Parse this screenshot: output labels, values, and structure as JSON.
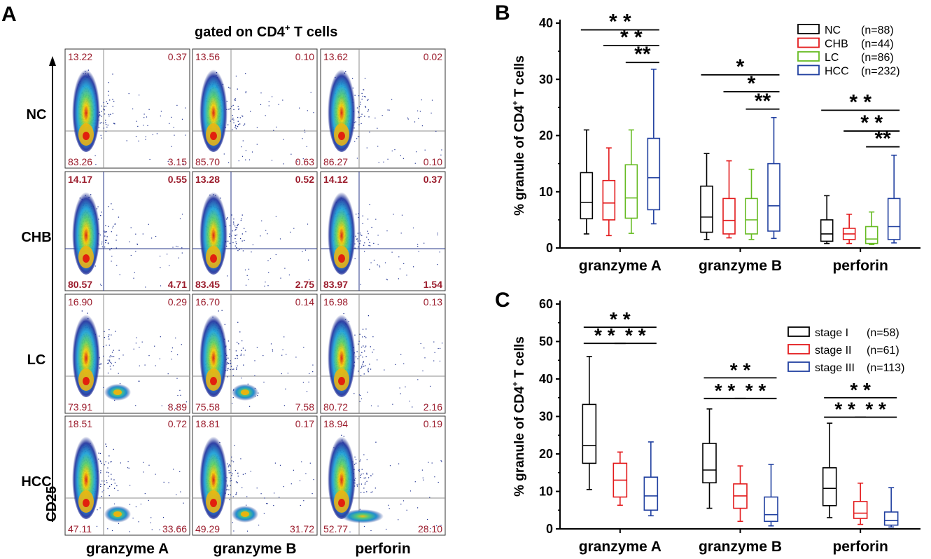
{
  "panel_a": {
    "letter": "A",
    "title_main": "gated on CD4",
    "title_sup": "+",
    "title_tail": " T cells",
    "ylabel": "CD25",
    "columns": [
      "granzyme A",
      "granzyme B",
      "perforin"
    ],
    "rows": [
      {
        "label": "NC",
        "plots": [
          [
            "13.22",
            "0.37",
            "83.26",
            "3.15"
          ],
          [
            "13.56",
            "0.10",
            "85.70",
            "0.63"
          ],
          [
            "13.62",
            "0.02",
            "86.27",
            "0.10"
          ]
        ]
      },
      {
        "label": "CHB",
        "plots": [
          [
            "14.17",
            "0.55",
            "80.57",
            "4.71"
          ],
          [
            "13.28",
            "0.52",
            "83.45",
            "2.75"
          ],
          [
            "14.12",
            "0.37",
            "83.97",
            "1.54"
          ]
        ]
      },
      {
        "label": "LC",
        "plots": [
          [
            "16.90",
            "0.29",
            "73.91",
            "8.89"
          ],
          [
            "16.70",
            "0.14",
            "75.58",
            "7.58"
          ],
          [
            "16.98",
            "0.13",
            "80.72",
            "2.16"
          ]
        ]
      },
      {
        "label": "HCC",
        "plots": [
          [
            "18.51",
            "0.72",
            "47.11",
            "33.66"
          ],
          [
            "18.81",
            "0.17",
            "49.29",
            "31.72"
          ],
          [
            "18.94",
            "0.19",
            "52.77",
            "28.10"
          ]
        ]
      }
    ],
    "colors": {
      "values": "#9b1c2c",
      "quad_line": "#8c8c8c",
      "quad_line_chb": "#2a3a8a"
    }
  },
  "chart_data": [
    {
      "panel": "B",
      "type": "box",
      "ylabel_pre": "% granule of CD4",
      "ylabel_sup": "+",
      "ylabel_post": " T cells",
      "ylim": [
        0,
        40
      ],
      "yticks": [
        "0",
        "10",
        "20",
        "30",
        "40"
      ],
      "categories": [
        "granzyme A",
        "granzyme B",
        "perforin"
      ],
      "series": [
        {
          "name": "NC",
          "n": "(n=88)",
          "color": "#000000",
          "boxes": [
            [
              2.5,
              5.2,
              8.1,
              13.4,
              21.0
            ],
            [
              1.5,
              2.8,
              5.5,
              11.0,
              16.8
            ],
            [
              0.8,
              1.2,
              2.5,
              5.0,
              9.3
            ]
          ]
        },
        {
          "name": "CHB",
          "n": "(n=44)",
          "color": "#e31a1c",
          "boxes": [
            [
              2.2,
              5.0,
              8.0,
              12.0,
              17.8
            ],
            [
              1.8,
              2.5,
              4.9,
              8.8,
              15.5
            ],
            [
              0.8,
              1.5,
              2.5,
              3.5,
              6.0
            ]
          ]
        },
        {
          "name": "LC",
          "n": "(n=86)",
          "color": "#66bb22",
          "boxes": [
            [
              2.6,
              5.3,
              8.9,
              14.8,
              21.0
            ],
            [
              1.5,
              2.5,
              5.0,
              8.8,
              14.0
            ],
            [
              0.6,
              0.8,
              1.6,
              3.8,
              6.4
            ]
          ]
        },
        {
          "name": "HCC",
          "n": "(n=232)",
          "color": "#2140a0",
          "boxes": [
            [
              4.3,
              6.8,
              12.5,
              19.5,
              31.8
            ],
            [
              1.7,
              3.0,
              7.5,
              15.0,
              23.2
            ],
            [
              0.9,
              1.5,
              3.8,
              8.8,
              16.5
            ]
          ]
        }
      ],
      "significance": [
        {
          "group": 0,
          "from": 0,
          "to": 3,
          "y": 38.8,
          "label": "* *"
        },
        {
          "group": 0,
          "from": 1,
          "to": 3,
          "y": 36.0,
          "label": "* *"
        },
        {
          "group": 0,
          "from": 2,
          "to": 3,
          "y": 33.0,
          "label": "**"
        },
        {
          "group": 1,
          "from": 0,
          "to": 3,
          "y": 30.8,
          "label": "*"
        },
        {
          "group": 1,
          "from": 1,
          "to": 3,
          "y": 27.8,
          "label": "*"
        },
        {
          "group": 1,
          "from": 2,
          "to": 3,
          "y": 24.7,
          "label": "**"
        },
        {
          "group": 2,
          "from": 0,
          "to": 3,
          "y": 24.5,
          "label": "* *"
        },
        {
          "group": 2,
          "from": 1,
          "to": 3,
          "y": 20.8,
          "label": "* *"
        },
        {
          "group": 2,
          "from": 2,
          "to": 3,
          "y": 18.0,
          "label": "**"
        }
      ]
    },
    {
      "panel": "C",
      "type": "box",
      "ylabel_pre": "% granule of CD4",
      "ylabel_sup": "+",
      "ylabel_post": " T cells",
      "ylim": [
        0,
        60
      ],
      "yticks": [
        "0",
        "10",
        "20",
        "30",
        "40",
        "50",
        "60"
      ],
      "categories": [
        "granzyme A",
        "granzyme B",
        "perforin"
      ],
      "series": [
        {
          "name": "stage I",
          "n": "(n=58)",
          "color": "#000000",
          "boxes": [
            [
              10.5,
              17.5,
              22.2,
              33.2,
              46.0
            ],
            [
              5.5,
              12.3,
              15.7,
              22.8,
              32.0
            ],
            [
              3.0,
              6.2,
              10.8,
              16.3,
              28.2
            ]
          ]
        },
        {
          "name": "stage II",
          "n": "(n=61)",
          "color": "#e31a1c",
          "boxes": [
            [
              6.3,
              8.5,
              13.0,
              17.5,
              20.5
            ],
            [
              2.0,
              5.5,
              8.8,
              12.0,
              16.8
            ],
            [
              1.2,
              2.8,
              4.2,
              7.3,
              12.2
            ]
          ]
        },
        {
          "name": "stage III",
          "n": "(n=113)",
          "color": "#2140a0",
          "boxes": [
            [
              3.5,
              5.0,
              8.8,
              13.8,
              23.2
            ],
            [
              0.8,
              2.0,
              3.8,
              8.5,
              17.2
            ],
            [
              0.5,
              1.0,
              2.2,
              4.5,
              11.0
            ]
          ]
        }
      ],
      "significance": [
        {
          "group": 0,
          "from": 0,
          "to": 2,
          "y": 53.8,
          "label": "* *"
        },
        {
          "group": 0,
          "from": 0,
          "to": 1,
          "y": 49.5,
          "label": "* *"
        },
        {
          "group": 0,
          "from": 1,
          "to": 2,
          "y": 49.5,
          "label": "* *"
        },
        {
          "group": 1,
          "from": 0,
          "to": 2,
          "y": 40.3,
          "label": "* *"
        },
        {
          "group": 1,
          "from": 0,
          "to": 1,
          "y": 34.8,
          "label": "* *"
        },
        {
          "group": 1,
          "from": 1,
          "to": 2,
          "y": 34.8,
          "label": "* *"
        },
        {
          "group": 2,
          "from": 0,
          "to": 2,
          "y": 35.0,
          "label": "* *"
        },
        {
          "group": 2,
          "from": 0,
          "to": 1,
          "y": 29.8,
          "label": "* *"
        },
        {
          "group": 2,
          "from": 1,
          "to": 2,
          "y": 29.8,
          "label": "* *"
        }
      ]
    }
  ]
}
